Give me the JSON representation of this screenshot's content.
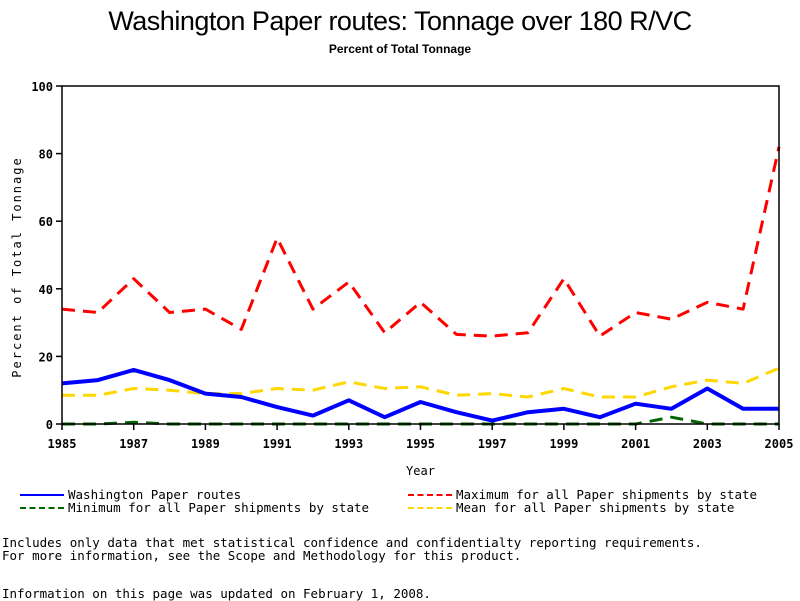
{
  "chart_data": {
    "type": "line",
    "title": "Washington Paper routes: Tonnage over 180 R/VC",
    "subtitle": "Percent of Total Tonnage",
    "xlabel": "Year",
    "ylabel": "Percent of Total Tonnage",
    "xlim": [
      1985,
      2005
    ],
    "ylim": [
      0,
      100
    ],
    "x_ticks": [
      "1985",
      "1987",
      "1989",
      "1991",
      "1993",
      "1995",
      "1997",
      "1999",
      "2001",
      "2003",
      "2005"
    ],
    "y_ticks": [
      "0",
      "20",
      "40",
      "60",
      "80",
      "100"
    ],
    "x": [
      1985,
      1986,
      1987,
      1988,
      1989,
      1990,
      1991,
      1992,
      1993,
      1994,
      1995,
      1996,
      1997,
      1998,
      1999,
      2000,
      2001,
      2002,
      2003,
      2004,
      2005
    ],
    "series": [
      {
        "name": "Washington Paper routes",
        "color": "#0000ff",
        "style": "solid",
        "values": [
          12,
          13,
          16,
          13,
          9,
          8,
          5,
          2.5,
          7,
          2,
          6.5,
          3.5,
          1,
          3.5,
          4.5,
          2,
          6,
          4.5,
          10.5,
          4.5,
          4.5
        ]
      },
      {
        "name": "Maximum for all Paper shipments by state",
        "color": "#ff0000",
        "style": "dashed",
        "values": [
          34,
          33,
          43,
          33,
          34,
          28,
          55,
          34,
          42,
          27,
          36,
          26.5,
          26,
          27,
          43,
          26,
          33,
          31,
          36,
          34,
          82
        ]
      },
      {
        "name": "Minimum for all Paper shipments by state",
        "color": "#006600",
        "style": "dashed",
        "values": [
          0,
          0,
          0.5,
          0,
          0,
          0,
          0,
          0,
          0,
          0,
          0,
          0,
          0,
          0,
          0,
          0,
          0,
          2,
          0,
          0,
          0
        ]
      },
      {
        "name": "Mean for all Paper shipments by state",
        "color": "#ffd700",
        "style": "dashed",
        "values": [
          8.5,
          8.5,
          10.5,
          10,
          9,
          9,
          10.5,
          10,
          12.5,
          10.5,
          11,
          8.5,
          9,
          8,
          10.5,
          8,
          8,
          11,
          13,
          12,
          16.5
        ]
      }
    ],
    "legend_position": "bottom",
    "grid": false
  },
  "legend": [
    {
      "label": "Washington Paper routes",
      "color": "#0000ff",
      "style": "solid"
    },
    {
      "label": "Maximum for all Paper shipments by state",
      "color": "#ff0000",
      "style": "dashed"
    },
    {
      "label": "Minimum for all Paper shipments by state",
      "color": "#006600",
      "style": "dashed"
    },
    {
      "label": "Mean for all Paper shipments by state",
      "color": "#ffd700",
      "style": "dashed"
    }
  ],
  "notes": {
    "line1": "Includes only data that met statistical confidence and confidentialty reporting requirements.",
    "line2": "For more information, see the Scope and Methodology for this product.",
    "updated": "Information on this page was updated on February 1, 2008."
  }
}
